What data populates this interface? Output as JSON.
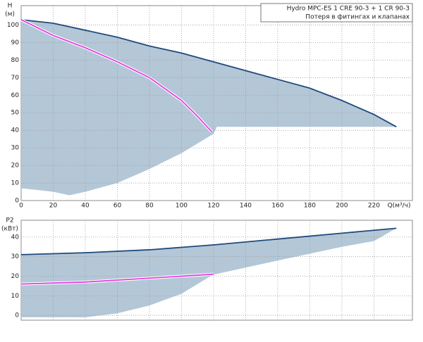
{
  "chart_data": [
    {
      "type": "line",
      "ylabel": "H",
      "yunit": "(м)",
      "xlabel": "Q(м³/ч)",
      "xlim": [
        0,
        244
      ],
      "ylim": [
        0,
        111
      ],
      "xticks": [
        0,
        20,
        40,
        60,
        80,
        100,
        120,
        140,
        160,
        180,
        200,
        220
      ],
      "yticks": [
        0,
        10,
        20,
        30,
        40,
        50,
        60,
        70,
        80,
        90,
        100
      ],
      "grid": true,
      "legend": "top-right",
      "area": {
        "color": "#b4c7d7",
        "x": [
          0,
          20,
          40,
          60,
          80,
          100,
          120,
          140,
          160,
          180,
          200,
          220,
          234,
          200,
          160,
          122,
          120,
          100,
          80,
          60,
          40,
          30,
          20,
          0
        ],
        "y": [
          103,
          101,
          97,
          93,
          88,
          84,
          79,
          74,
          69,
          64,
          57,
          49,
          42,
          42,
          42,
          42,
          38,
          27,
          18,
          10,
          5,
          3,
          5,
          7
        ]
      },
      "series": [
        {
          "name": "Hydro MPC-ES 1 CRE 90-3  +  1 CR 90-3",
          "color": "#1f4a7c",
          "x": [
            0,
            20,
            40,
            60,
            80,
            100,
            120,
            140,
            160,
            180,
            200,
            220,
            234
          ],
          "values": [
            103,
            101,
            97,
            93,
            88,
            84,
            79,
            74,
            69,
            64,
            57,
            49,
            42
          ]
        },
        {
          "name": "Потеря в фитингах и клапанах",
          "color": "#e040e0",
          "x": [
            0,
            20,
            40,
            60,
            80,
            100,
            110,
            119
          ],
          "values": [
            103,
            94,
            87,
            79,
            70,
            57,
            48,
            39
          ]
        }
      ]
    },
    {
      "type": "line",
      "ylabel": "P2",
      "yunit": "(кВт)",
      "xlim": [
        0,
        244
      ],
      "ylim": [
        -2.5,
        48.6
      ],
      "xticks": [
        0,
        20,
        40,
        60,
        80,
        100,
        120,
        140,
        160,
        180,
        200,
        220
      ],
      "yticks": [
        0,
        10,
        20,
        30,
        40
      ],
      "grid": true,
      "area": {
        "color": "#b4c7d7",
        "x": [
          0,
          40,
          80,
          120,
          160,
          200,
          234,
          220,
          200,
          160,
          121,
          120,
          100,
          80,
          60,
          40,
          0
        ],
        "y": [
          31,
          32,
          33.5,
          36,
          39,
          42,
          44.5,
          38,
          35,
          28,
          21,
          21,
          11,
          5,
          1,
          -1,
          -1
        ]
      },
      "series": [
        {
          "color": "#1f4a7c",
          "x": [
            0,
            40,
            80,
            120,
            160,
            200,
            234
          ],
          "values": [
            31,
            32,
            33.5,
            36,
            39,
            42,
            44.5
          ]
        },
        {
          "color": "#e040e0",
          "x": [
            0,
            40,
            80,
            120
          ],
          "values": [
            16,
            17,
            19,
            21
          ]
        }
      ]
    }
  ]
}
